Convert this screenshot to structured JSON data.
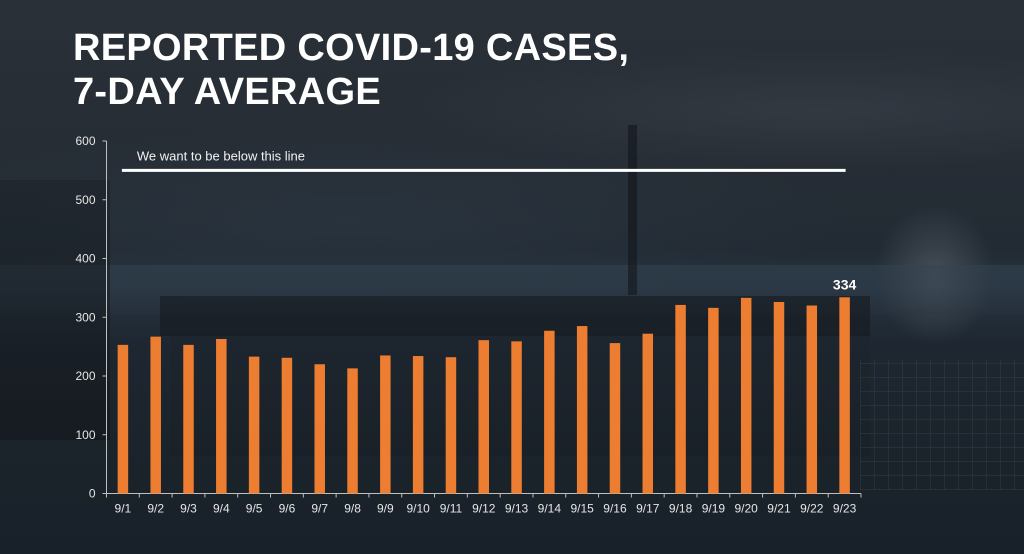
{
  "slide": {
    "title_lines": [
      "Reported COVID-19 cases,",
      "7-day average"
    ]
  },
  "chart_data": {
    "type": "bar",
    "title": "Reported COVID-19 cases, 7-day average",
    "xlabel": "",
    "ylabel": "",
    "ylim": [
      0,
      600
    ],
    "yticks": [
      0,
      100,
      200,
      300,
      400,
      500,
      600
    ],
    "grid": false,
    "bar_color": "#ED7D31",
    "categories": [
      "9/1",
      "9/2",
      "9/3",
      "9/4",
      "9/5",
      "9/6",
      "9/7",
      "9/8",
      "9/9",
      "9/10",
      "9/11",
      "9/12",
      "9/13",
      "9/14",
      "9/15",
      "9/16",
      "9/17",
      "9/18",
      "9/19",
      "9/20",
      "9/21",
      "9/22",
      "9/23"
    ],
    "values": [
      253,
      267,
      253,
      263,
      233,
      231,
      220,
      213,
      235,
      234,
      232,
      261,
      259,
      277,
      285,
      256,
      272,
      321,
      316,
      333,
      326,
      320,
      334
    ],
    "data_labels": [
      {
        "category": "9/23",
        "text": "334"
      }
    ],
    "threshold": {
      "value": 550,
      "label": "We want to be below this line",
      "color": "#FFFFFF"
    }
  }
}
